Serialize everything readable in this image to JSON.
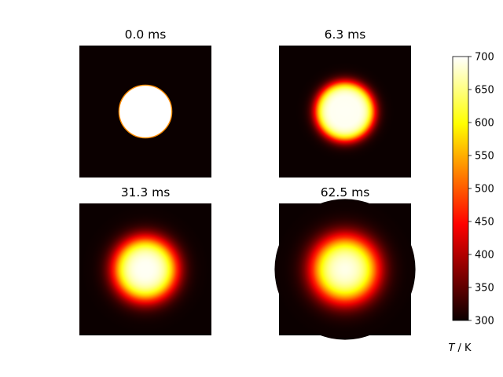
{
  "chart_data": {
    "type": "heatmap",
    "panels": [
      {
        "title": "0.0 ms",
        "time_ms": 0.0,
        "profile": "step",
        "radius_fraction": 0.2
      },
      {
        "title": "6.3 ms",
        "time_ms": 6.3,
        "profile": "smoothed",
        "radius_fraction": 0.2
      },
      {
        "title": "31.3 ms",
        "time_ms": 31.3,
        "profile": "smoothed",
        "radius_fraction": 0.2
      },
      {
        "title": "62.5 ms",
        "time_ms": 62.5,
        "profile": "smoothed",
        "radius_fraction": 0.2
      }
    ],
    "center_temperature_K": [
      700,
      700,
      700,
      695
    ],
    "background_temperature_K": 300,
    "colormap": "hot",
    "colorbar": {
      "label_italic": "T",
      "label_rest": " / K",
      "vmin": 300,
      "vmax": 700,
      "ticks": [
        "300",
        "350",
        "400",
        "450",
        "500",
        "550",
        "600",
        "650",
        "700"
      ]
    },
    "axes_visible": false,
    "grid": false
  }
}
